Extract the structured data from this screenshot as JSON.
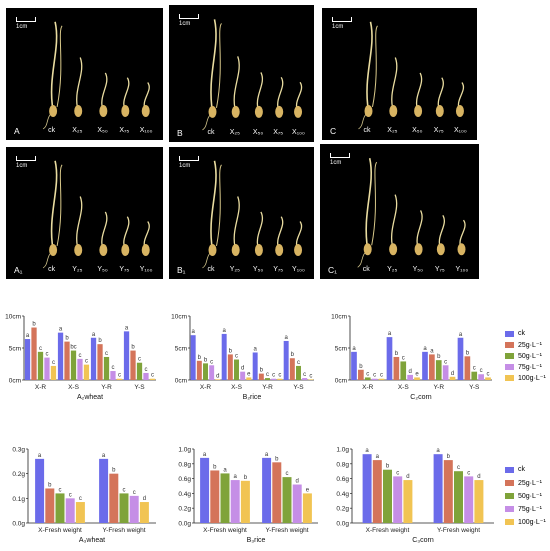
{
  "colors": [
    "#6b6bea",
    "#d4745a",
    "#7fa33a",
    "#c58ee6",
    "#f1c453"
  ],
  "legend_top": {
    "items": [
      "ck",
      "25g·L⁻¹",
      "50g·L⁻¹",
      "75g·L⁻¹",
      "100g·L⁻¹"
    ]
  },
  "legend_bottom": {
    "items": [
      "ck",
      "25g·L⁻¹",
      "50g·L⁻¹",
      "75g·L⁻¹",
      "100g·L⁻¹"
    ]
  },
  "photos": [
    {
      "id": "A",
      "panel": "A",
      "ck": "ck",
      "labels": [
        "X₂₅",
        "X₅₀",
        "X₇₅",
        "X₁₀₀"
      ],
      "scale": "1cm"
    },
    {
      "id": "B",
      "panel": "B",
      "ck": "ck",
      "labels": [
        "X₂₅",
        "X₅₀",
        "X₇₅",
        "X₁₀₀"
      ],
      "scale": "1cm"
    },
    {
      "id": "C",
      "panel": "C",
      "ck": "ck",
      "labels": [
        "X₂₅",
        "X₅₀",
        "X₇₅",
        "X₁₀₀"
      ],
      "scale": "1cm"
    },
    {
      "id": "A1",
      "panel": "A₁",
      "ck": "ck",
      "labels": [
        "Y₂₅",
        "Y₅₀",
        "Y₇₅",
        "Y₁₀₀"
      ],
      "scale": "1cm"
    },
    {
      "id": "B1",
      "panel": "B₁",
      "ck": "ck",
      "labels": [
        "Y₂₅",
        "Y₅₀",
        "Y₇₅",
        "Y₁₀₀"
      ],
      "scale": "1cm"
    },
    {
      "id": "C1",
      "panel": "C₁",
      "ck": "ck",
      "labels": [
        "Y₂₅",
        "Y₅₀",
        "Y₇₅",
        "Y₁₀₀"
      ],
      "scale": "1cm"
    }
  ],
  "chart_data": [
    {
      "id": "A2",
      "type": "bar",
      "title": "A₂wheat",
      "categories": [
        "X-R",
        "X-S",
        "Y-R",
        "Y-S"
      ],
      "ylim": [
        0,
        10
      ],
      "yticks": [
        "0cm",
        "5cm",
        "10cm"
      ],
      "series": [
        {
          "name": "ck",
          "values": [
            6.4,
            7.4,
            6.6,
            7.6
          ]
        },
        {
          "name": "25g·L⁻¹",
          "values": [
            8.2,
            6.0,
            5.6,
            4.6
          ]
        },
        {
          "name": "50g·L⁻¹",
          "values": [
            4.4,
            4.6,
            3.6,
            2.7
          ]
        },
        {
          "name": "75g·L⁻¹",
          "values": [
            3.5,
            3.3,
            1.4,
            1.1
          ]
        },
        {
          "name": "100g·L⁻¹",
          "values": [
            2.2,
            2.4,
            0.2,
            0.2
          ]
        }
      ],
      "letters": [
        [
          "a",
          "b",
          "c",
          "c",
          "c"
        ],
        [
          "a",
          "b",
          "bc",
          "c",
          "c"
        ],
        [
          "a",
          "b",
          "c",
          "c",
          "c"
        ],
        [
          "a",
          "b",
          "c",
          "c",
          "c"
        ]
      ]
    },
    {
      "id": "B2",
      "type": "bar",
      "title": "B₂rice",
      "categories": [
        "X-R",
        "X-S",
        "Y-R",
        "Y-S"
      ],
      "ylim": [
        0,
        10
      ],
      "yticks": [
        "0cm",
        "5cm",
        "10cm"
      ],
      "series": [
        {
          "name": "ck",
          "values": [
            7.0,
            7.2,
            4.3,
            6.1
          ]
        },
        {
          "name": "25g·L⁻¹",
          "values": [
            3.0,
            4.0,
            1.0,
            3.4
          ]
        },
        {
          "name": "50g·L⁻¹",
          "values": [
            2.6,
            3.2,
            0.3,
            2.2
          ]
        },
        {
          "name": "75g·L⁻¹",
          "values": [
            2.3,
            1.3,
            0.2,
            0.3
          ]
        },
        {
          "name": "100g·L⁻¹",
          "values": [
            0.1,
            0.4,
            0.2,
            0.1
          ]
        }
      ],
      "letters": [
        [
          "a",
          "b",
          "b",
          "c",
          "d"
        ],
        [
          "a",
          "b",
          "c",
          "d",
          "e"
        ],
        [
          "a",
          "b",
          "c",
          "c",
          "c"
        ],
        [
          "a",
          "b",
          "c",
          "c",
          "c"
        ]
      ]
    },
    {
      "id": "C2",
      "type": "bar",
      "title": "C₂corn",
      "categories": [
        "X-R",
        "X-S",
        "Y-R",
        "Y-S"
      ],
      "ylim": [
        0,
        10
      ],
      "yticks": [
        "0cm",
        "5cm",
        "10cm"
      ],
      "series": [
        {
          "name": "ck",
          "values": [
            4.4,
            6.7,
            4.4,
            6.6
          ]
        },
        {
          "name": "25g·L⁻¹",
          "values": [
            1.6,
            3.6,
            4.0,
            3.7
          ]
        },
        {
          "name": "50g·L⁻¹",
          "values": [
            0.4,
            2.9,
            3.1,
            1.3
          ]
        },
        {
          "name": "75g·L⁻¹",
          "values": [
            0.2,
            0.8,
            2.3,
            0.9
          ]
        },
        {
          "name": "100g·L⁻¹",
          "values": [
            0.2,
            0.4,
            0.5,
            0.4
          ]
        }
      ],
      "letters": [
        [
          "a",
          "b",
          "c",
          "c",
          "c"
        ],
        [
          "a",
          "b",
          "c",
          "d",
          "e"
        ],
        [
          "a",
          "a",
          "b",
          "c",
          "d"
        ],
        [
          "a",
          "b",
          "c",
          "c",
          "c"
        ]
      ]
    },
    {
      "id": "A3",
      "type": "bar",
      "title": "A₃wheat",
      "categories": [
        "X-Fresh weight",
        "Y-Fresh weight"
      ],
      "ylim": [
        0,
        0.3
      ],
      "yticks": [
        "0.0g",
        "0.1g",
        "0.2g",
        "0.3g"
      ],
      "series": [
        {
          "name": "ck",
          "values": [
            0.26,
            0.26
          ]
        },
        {
          "name": "25g·L⁻¹",
          "values": [
            0.14,
            0.2
          ]
        },
        {
          "name": "50g·L⁻¹",
          "values": [
            0.12,
            0.12
          ]
        },
        {
          "name": "75g·L⁻¹",
          "values": [
            0.1,
            0.11
          ]
        },
        {
          "name": "100g·L⁻¹",
          "values": [
            0.085,
            0.085
          ]
        }
      ],
      "letters": [
        [
          "a",
          "b",
          "c",
          "c",
          "c"
        ],
        [
          "a",
          "b",
          "c",
          "c",
          "d"
        ]
      ]
    },
    {
      "id": "B3",
      "type": "bar",
      "title": "B₃rice",
      "categories": [
        "X-Fresh weight",
        "Y-Fresh weight"
      ],
      "ylim": [
        0,
        1.0
      ],
      "yticks": [
        "0.0g",
        "0.2g",
        "0.4g",
        "0.6g",
        "0.8g",
        "1.0g"
      ],
      "series": [
        {
          "name": "ck",
          "values": [
            0.88,
            0.88
          ]
        },
        {
          "name": "25g·L⁻¹",
          "values": [
            0.71,
            0.82
          ]
        },
        {
          "name": "50g·L⁻¹",
          "values": [
            0.67,
            0.62
          ]
        },
        {
          "name": "75g·L⁻¹",
          "values": [
            0.58,
            0.52
          ]
        },
        {
          "name": "100g·L⁻¹",
          "values": [
            0.57,
            0.4
          ]
        }
      ],
      "letters": [
        [
          "a",
          "b",
          "a",
          "a",
          "b"
        ],
        [
          "a",
          "b",
          "c",
          "d",
          "e"
        ]
      ]
    },
    {
      "id": "C3",
      "type": "bar",
      "title": "C₃corn",
      "categories": [
        "X-Fresh weight",
        "Y-Fresh weight"
      ],
      "ylim": [
        0,
        1.0
      ],
      "yticks": [
        "0.0g",
        "0.2g",
        "0.4g",
        "0.6g",
        "0.8g",
        "1.0g"
      ],
      "series": [
        {
          "name": "ck",
          "values": [
            0.93,
            0.93
          ]
        },
        {
          "name": "25g·L⁻¹",
          "values": [
            0.85,
            0.85
          ]
        },
        {
          "name": "50g·L⁻¹",
          "values": [
            0.72,
            0.7
          ]
        },
        {
          "name": "75g·L⁻¹",
          "values": [
            0.63,
            0.63
          ]
        },
        {
          "name": "100g·L⁻¹",
          "values": [
            0.58,
            0.58
          ]
        }
      ],
      "letters": [
        [
          "a",
          "a",
          "b",
          "c",
          "d"
        ],
        [
          "a",
          "b",
          "c",
          "c",
          "d"
        ]
      ]
    }
  ]
}
